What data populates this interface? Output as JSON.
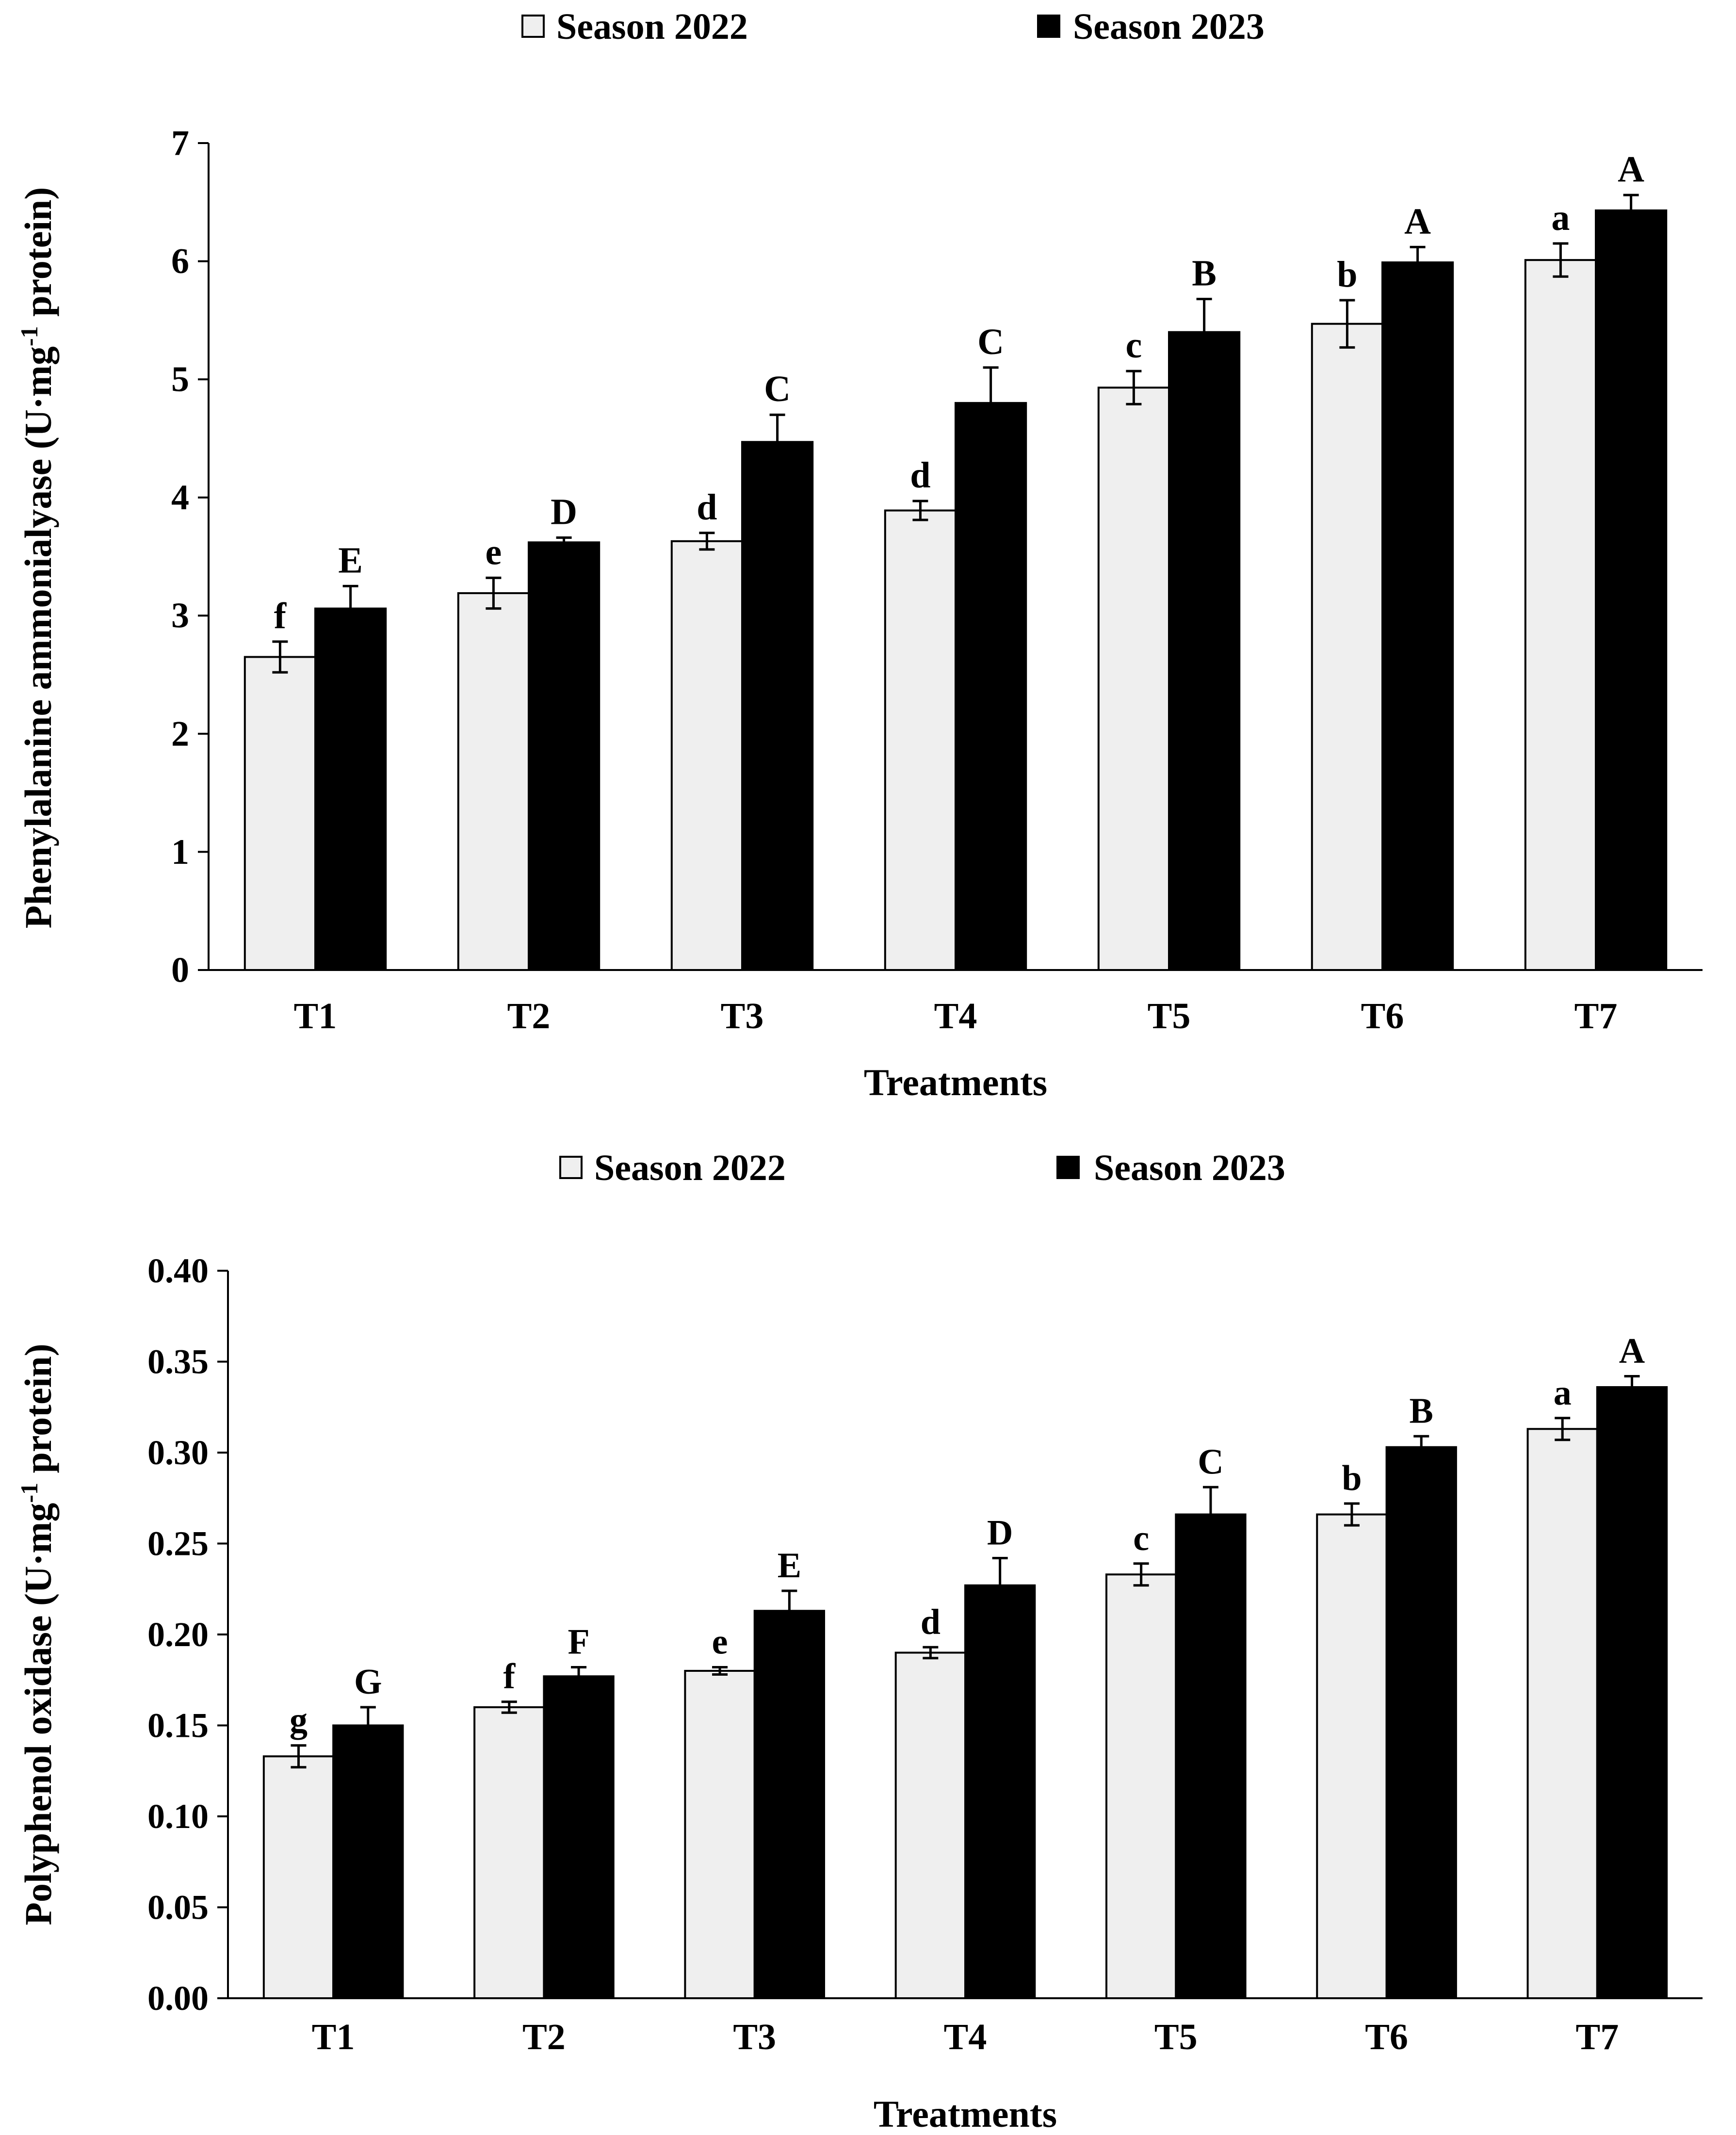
{
  "colors": {
    "season_2022": "#efefef",
    "season_2023": "#000000",
    "axis": "#000000"
  },
  "chart_data": [
    {
      "type": "bar",
      "title": "",
      "categories": [
        "T1",
        "T2",
        "T3",
        "T4",
        "T5",
        "T6",
        "T7"
      ],
      "xlabel": "Treatments",
      "ylabel": {
        "main": "Phenylalanine ammonialyase (U·mg",
        "sup": "-1",
        "tail": " protein)"
      },
      "ylim": [
        0,
        7
      ],
      "yticks": [
        "0",
        "1",
        "2",
        "3",
        "4",
        "5",
        "6",
        "7"
      ],
      "legend_position": "top-center",
      "series": [
        {
          "name": "Season 2022",
          "color_key": "season_2022",
          "values": [
            2.65,
            3.19,
            3.63,
            3.89,
            4.93,
            5.47,
            6.01
          ],
          "errors": [
            0.13,
            0.13,
            0.07,
            0.08,
            0.14,
            0.2,
            0.14
          ],
          "letters": [
            "f",
            "e",
            "d",
            "d",
            "c",
            "b",
            "a"
          ]
        },
        {
          "name": "Season 2023",
          "color_key": "season_2023",
          "values": [
            3.06,
            3.62,
            4.47,
            4.8,
            5.4,
            5.99,
            6.43
          ],
          "errors": [
            0.19,
            0.04,
            0.23,
            0.3,
            0.28,
            0.13,
            0.13
          ],
          "letters": [
            "E",
            "D",
            "C",
            "C",
            "B",
            "A",
            "A"
          ]
        }
      ]
    },
    {
      "type": "bar",
      "title": "",
      "categories": [
        "T1",
        "T2",
        "T3",
        "T4",
        "T5",
        "T6",
        "T7"
      ],
      "xlabel": "Treatments",
      "ylabel": {
        "main": "Polyphenol oxidase (U·mg",
        "sup": "-1",
        "tail": " protein)"
      },
      "ylim": [
        0,
        0.4
      ],
      "yticks": [
        "0.00",
        "0.05",
        "0.10",
        "0.15",
        "0.20",
        "0.25",
        "0.30",
        "0.35",
        "0.40"
      ],
      "legend_position": "top-center",
      "series": [
        {
          "name": "Season 2022",
          "color_key": "season_2022",
          "values": [
            0.133,
            0.16,
            0.18,
            0.19,
            0.233,
            0.266,
            0.313
          ],
          "errors": [
            0.006,
            0.003,
            0.002,
            0.003,
            0.006,
            0.006,
            0.006
          ],
          "letters": [
            "g",
            "f",
            "e",
            "d",
            "c",
            "b",
            "a"
          ]
        },
        {
          "name": "Season 2023",
          "color_key": "season_2023",
          "values": [
            0.15,
            0.177,
            0.213,
            0.227,
            0.266,
            0.303,
            0.336
          ],
          "errors": [
            0.01,
            0.005,
            0.011,
            0.015,
            0.015,
            0.006,
            0.006
          ],
          "letters": [
            "G",
            "F",
            "E",
            "D",
            "C",
            "B",
            "A"
          ]
        }
      ]
    }
  ]
}
